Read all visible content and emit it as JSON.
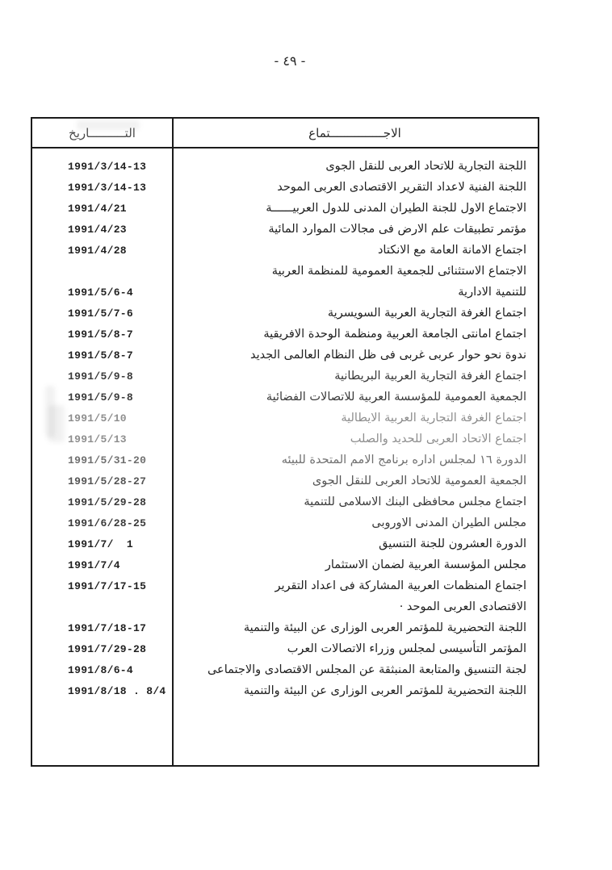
{
  "page": {
    "number_label": "- ٤٩ -",
    "background": "#ffffff"
  },
  "colors": {
    "border": "#1b1b1b",
    "ink_dark": "#212121",
    "ink_middark": "#3a3a3a",
    "ink_mid": "#545454",
    "ink_midlight": "#6f6f6f",
    "ink_light": "#8e8e8e"
  },
  "table": {
    "headers": {
      "date": "التــــــــــاريخ",
      "meeting": "الاجـــــــــــــــتماع"
    },
    "rows": [
      {
        "date": "1991/3/14-13",
        "meeting": "اللجنة التجارية للاتحاد العربى للنقل الجوى",
        "tone": "dark"
      },
      {
        "date": "1991/3/14-13",
        "meeting": "اللجنة الفنية لاعداد التقرير الاقتصادى العربى الموحد",
        "tone": "dark"
      },
      {
        "date": "1991/4/21",
        "meeting": "الاجتماع الاول للجنة الطيران المدنى للدول العربيــــــة",
        "tone": "dark"
      },
      {
        "date": "1991/4/23",
        "meeting": "مؤتمر تطبيقات علم الارض فى مجالات الموارد المائية",
        "tone": "dark"
      },
      {
        "date": "1991/4/28",
        "meeting": "اجتماع الامانة العامة مع الانكتاد",
        "tone": "dark"
      },
      {
        "date": "",
        "meeting": "الاجتماع الاستثنائى للجمعية العمومية للمنظمة العربية",
        "tone": "dark"
      },
      {
        "date": "1991/5/6-4",
        "meeting": "للتنمية الادارية",
        "tone": "dark"
      },
      {
        "date": "1991/5/7-6",
        "meeting": "اجتماع الغرفة التجارية العربية السويسرية",
        "tone": "dark"
      },
      {
        "date": "1991/5/8-7",
        "meeting": "اجتماع امانتى الجامعة العربية ومنظمة الوحدة الافريقية",
        "tone": "dark"
      },
      {
        "date": "1991/5/8-7",
        "meeting": "ندوة نحو حوار  عربى غربى فى ظل النظام العالمى الجديد",
        "tone": "dark"
      },
      {
        "date": "1991/5/9-8",
        "meeting": "اجتماع الغرفة التجارية العربية البريطانية",
        "tone": "middark"
      },
      {
        "date": "1991/5/9-8",
        "meeting": "الجمعية العمومية للمؤسسة العربية للاتصالات الفضائية",
        "tone": "middark"
      },
      {
        "date": "1991/5/10",
        "meeting": "اجتماع الغرفة التجارية العربية الايطالية",
        "tone": "light"
      },
      {
        "date": "1991/5/13",
        "meeting": "اجتماع الاتحاد العربى للحديد والصلب",
        "tone": "light"
      },
      {
        "date": "1991/5/31-20",
        "meeting": "الدورة ١٦ لمجلس اداره برنامج الامم المتحدة للبيئه",
        "tone": "midlight"
      },
      {
        "date": "1991/5/28-27",
        "meeting": "الجمعية العمومية للاتحاد العربى للنقل الجوى",
        "tone": "mid"
      },
      {
        "date": "1991/5/29-28",
        "meeting": "اجتماع مجلس محافظى البنك الاسلامى للتنمية",
        "tone": "middark"
      },
      {
        "date": "1991/6/28-25",
        "meeting": "مجلس الطيران المدنى الاوروبى",
        "tone": "middark"
      },
      {
        "date": "1991/7/  1",
        "meeting": "الدورة العشرون للجنة التنسيق",
        "tone": "dark"
      },
      {
        "date": "1991/7/4",
        "meeting": "مجلس المؤسسة العربية لضمان الاستثمار",
        "tone": "dark"
      },
      {
        "date": "1991/7/17-15",
        "meeting": "اجتماع المنظمات العربية المشاركة فى اعداد التقرير",
        "tone": "dark"
      },
      {
        "date": "",
        "meeting": "الاقتصادى العربى الموحد ·",
        "tone": "dark"
      },
      {
        "date": "1991/7/18-17",
        "meeting": "اللجنة التحضيرية للمؤتمر العربى الوزارى عن البيئة والتنمية",
        "tone": "dark"
      },
      {
        "date": "1991/7/29-28",
        "meeting": "المؤتمر التأسيسى لمجلس وزراء الاتصالات العرب",
        "tone": "dark"
      },
      {
        "date": "1991/8/6-4",
        "meeting": "لجنة التنسيق والمتابعة  المنبثقة عن المجلس الاقتصادى والاجتماعى",
        "tone": "dark"
      },
      {
        "date": "1991/8/18 . 8/4",
        "meeting": "اللجنة التحضيرية للمؤتمر العربى الوزارى عن البيئة والتنمية",
        "tone": "dark"
      }
    ]
  }
}
